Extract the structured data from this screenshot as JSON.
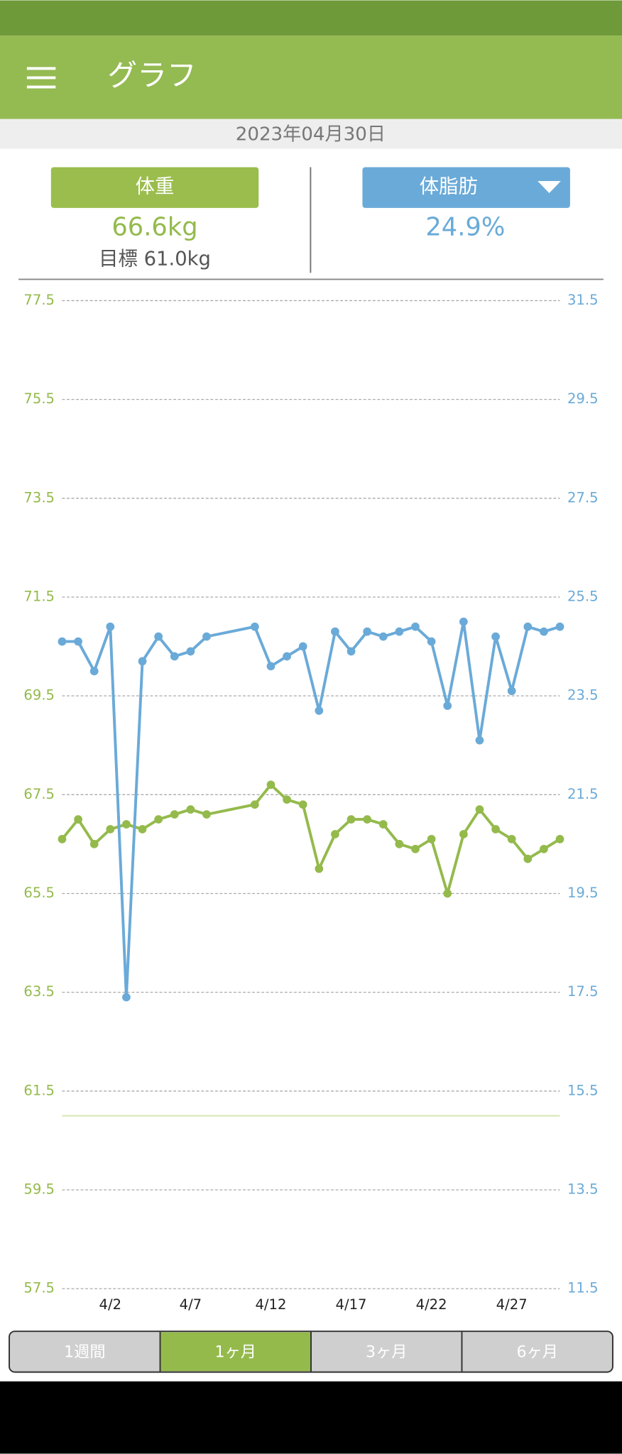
{
  "app_bar": {
    "title": "グラフ"
  },
  "date": "2023年04月30日",
  "summary": {
    "weight_label": "体重",
    "weight_value": "66.6kg",
    "goal": "目標 61.0kg",
    "fat_label": "体脂肪",
    "fat_value": "24.9%"
  },
  "chart_data": {
    "type": "line",
    "x": [
      "3/30",
      "3/31",
      "4/1",
      "4/2",
      "4/3",
      "4/4",
      "4/5",
      "4/6",
      "4/7",
      "4/8",
      "4/11",
      "4/12",
      "4/13",
      "4/14",
      "4/15",
      "4/16",
      "4/17",
      "4/18",
      "4/19",
      "4/20",
      "4/21",
      "4/22",
      "4/23",
      "4/24",
      "4/25",
      "4/26",
      "4/27",
      "4/28",
      "4/29",
      "4/30"
    ],
    "xlim": [
      "3/30",
      "4/30"
    ],
    "xticks": [
      "4/2",
      "4/7",
      "4/12",
      "4/17",
      "4/22",
      "4/27"
    ],
    "series": [
      {
        "name": "体重",
        "color": "#94ba4c",
        "axis": "y",
        "values": [
          66.6,
          67.0,
          66.5,
          66.8,
          66.9,
          66.8,
          67.0,
          67.1,
          67.2,
          67.1,
          67.3,
          67.7,
          67.4,
          67.3,
          66.0,
          66.7,
          67.0,
          67.0,
          66.9,
          66.5,
          66.4,
          66.6,
          65.5,
          66.7,
          67.2,
          66.8,
          66.6,
          66.2,
          66.4,
          66.6
        ]
      },
      {
        "name": "体脂肪",
        "color": "#6aaad8",
        "axis": "y2",
        "values": [
          24.6,
          24.6,
          24.0,
          24.9,
          17.4,
          24.2,
          24.7,
          24.3,
          24.4,
          24.7,
          24.9,
          24.1,
          24.3,
          24.5,
          23.2,
          24.8,
          24.4,
          24.8,
          24.7,
          24.8,
          24.9,
          24.6,
          23.3,
          25.0,
          22.6,
          24.7,
          23.6,
          24.9,
          24.8,
          24.9
        ]
      }
    ],
    "goal_line": 61.0,
    "ylim": [
      57.5,
      77.5
    ],
    "yticks": [
      57.5,
      59.5,
      61.5,
      63.5,
      65.5,
      67.5,
      69.5,
      71.5,
      73.5,
      75.5,
      77.5
    ],
    "y2lim": [
      11.5,
      31.5
    ],
    "y2ticks": [
      11.5,
      13.5,
      15.5,
      17.5,
      19.5,
      21.5,
      23.5,
      25.5,
      27.5,
      29.5,
      31.5
    ],
    "grid": true
  },
  "tabs": {
    "items": [
      "1週間",
      "1ヶ月",
      "3ヶ月",
      "6ヶ月"
    ],
    "selected": 1
  }
}
